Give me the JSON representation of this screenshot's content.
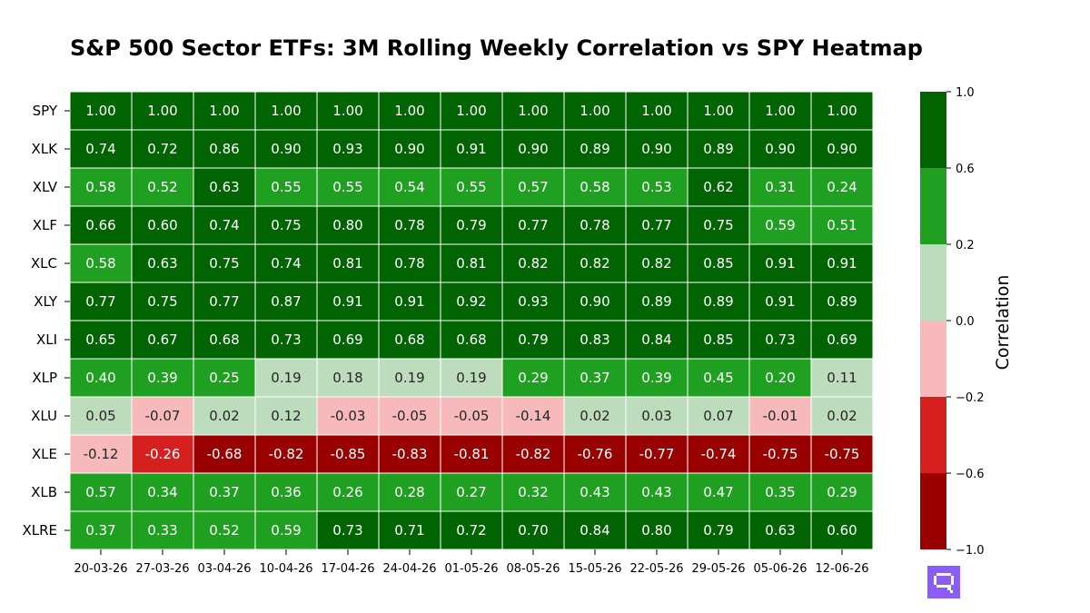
{
  "chart_data": {
    "type": "heatmap",
    "title": "S&P 500 Sector ETFs: 3M Rolling Weekly Correlation vs SPY Heatmap",
    "rows": [
      "SPY",
      "XLK",
      "XLV",
      "XLF",
      "XLC",
      "XLY",
      "XLI",
      "XLP",
      "XLU",
      "XLE",
      "XLB",
      "XLRE"
    ],
    "columns": [
      "20-03-26",
      "27-03-26",
      "03-04-26",
      "10-04-26",
      "17-04-26",
      "24-04-26",
      "01-05-26",
      "08-05-26",
      "15-05-26",
      "22-05-26",
      "29-05-26",
      "05-06-26",
      "12-06-26"
    ],
    "values": [
      [
        1.0,
        1.0,
        1.0,
        1.0,
        1.0,
        1.0,
        1.0,
        1.0,
        1.0,
        1.0,
        1.0,
        1.0,
        1.0
      ],
      [
        0.74,
        0.72,
        0.86,
        0.9,
        0.93,
        0.9,
        0.91,
        0.9,
        0.89,
        0.9,
        0.89,
        0.9,
        0.9
      ],
      [
        0.58,
        0.52,
        0.63,
        0.55,
        0.55,
        0.54,
        0.55,
        0.57,
        0.58,
        0.53,
        0.62,
        0.31,
        0.24
      ],
      [
        0.66,
        0.6,
        0.74,
        0.75,
        0.8,
        0.78,
        0.79,
        0.77,
        0.78,
        0.77,
        0.75,
        0.59,
        0.51
      ],
      [
        0.58,
        0.63,
        0.75,
        0.74,
        0.81,
        0.78,
        0.81,
        0.82,
        0.82,
        0.82,
        0.85,
        0.91,
        0.91
      ],
      [
        0.77,
        0.75,
        0.77,
        0.87,
        0.91,
        0.91,
        0.92,
        0.93,
        0.9,
        0.89,
        0.89,
        0.91,
        0.89
      ],
      [
        0.65,
        0.67,
        0.68,
        0.73,
        0.69,
        0.68,
        0.68,
        0.79,
        0.83,
        0.84,
        0.85,
        0.73,
        0.69
      ],
      [
        0.4,
        0.39,
        0.25,
        0.19,
        0.18,
        0.19,
        0.19,
        0.29,
        0.37,
        0.39,
        0.45,
        0.2,
        0.11
      ],
      [
        0.05,
        -0.07,
        0.02,
        0.12,
        -0.03,
        -0.05,
        -0.05,
        -0.14,
        0.02,
        0.03,
        0.07,
        -0.01,
        0.02
      ],
      [
        -0.12,
        -0.26,
        -0.68,
        -0.82,
        -0.85,
        -0.83,
        -0.81,
        -0.82,
        -0.76,
        -0.77,
        -0.74,
        -0.75,
        -0.75
      ],
      [
        0.57,
        0.34,
        0.37,
        0.36,
        0.26,
        0.28,
        0.27,
        0.32,
        0.43,
        0.43,
        0.47,
        0.35,
        0.29
      ],
      [
        0.37,
        0.33,
        0.52,
        0.59,
        0.73,
        0.71,
        0.72,
        0.7,
        0.84,
        0.8,
        0.79,
        0.63,
        0.6
      ]
    ],
    "colorbar": {
      "label": "Correlation",
      "bounds": [
        -1.0,
        -0.6,
        -0.2,
        0.0,
        0.2,
        0.6,
        1.0
      ],
      "tick_labels": [
        "−1.0",
        "−0.6",
        "−0.2",
        "0.0",
        "0.2",
        "0.6",
        "1.0"
      ],
      "colors": [
        "#990000",
        "#d62020",
        "#f7b9b9",
        "#bcdcbc",
        "#20a020",
        "#006400"
      ],
      "text_colors": [
        "#ffffff",
        "#ffffff",
        "#262626",
        "#262626",
        "#ffffff",
        "#ffffff"
      ]
    },
    "grid": true,
    "legend": "right colorbar"
  },
  "brand": {
    "logo_icon": "chat-bubble-logo-icon",
    "logo_color": "#8b5cf6"
  }
}
